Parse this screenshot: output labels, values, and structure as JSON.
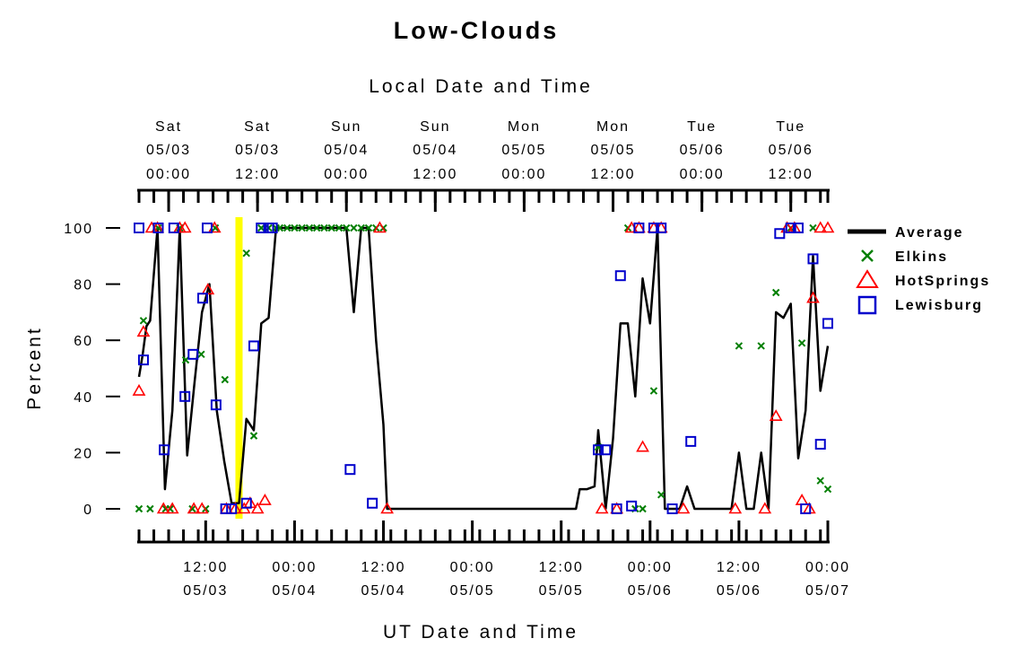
{
  "chart_data": {
    "type": "line",
    "title": "Low-Clouds",
    "top_axis_title": "Local Date and Time",
    "bottom_axis_title": "UT Date and Time",
    "ylabel": "Percent",
    "ylim": [
      0,
      100
    ],
    "y_ticks": [
      0,
      20,
      40,
      60,
      80,
      100
    ],
    "xlim_hours_ut": [
      0,
      93
    ],
    "top_ticks": [
      {
        "t": 4,
        "line1": "Sat",
        "line2": "05/03",
        "line3": "00:00"
      },
      {
        "t": 16,
        "line1": "Sat",
        "line2": "05/03",
        "line3": "12:00"
      },
      {
        "t": 28,
        "line1": "Sun",
        "line2": "05/04",
        "line3": "00:00"
      },
      {
        "t": 40,
        "line1": "Sun",
        "line2": "05/04",
        "line3": "12:00"
      },
      {
        "t": 52,
        "line1": "Mon",
        "line2": "05/05",
        "line3": "00:00"
      },
      {
        "t": 64,
        "line1": "Mon",
        "line2": "05/05",
        "line3": "12:00"
      },
      {
        "t": 76,
        "line1": "Tue",
        "line2": "05/06",
        "line3": "00:00"
      },
      {
        "t": 88,
        "line1": "Tue",
        "line2": "05/06",
        "line3": "12:00"
      }
    ],
    "bottom_ticks": [
      {
        "t": 9,
        "time": "12:00",
        "date": "05/03"
      },
      {
        "t": 21,
        "time": "00:00",
        "date": "05/04"
      },
      {
        "t": 33,
        "time": "12:00",
        "date": "05/04"
      },
      {
        "t": 45,
        "time": "00:00",
        "date": "05/05"
      },
      {
        "t": 57,
        "time": "12:00",
        "date": "05/05"
      },
      {
        "t": 69,
        "time": "00:00",
        "date": "05/06"
      },
      {
        "t": 81,
        "time": "12:00",
        "date": "05/06"
      },
      {
        "t": 93,
        "time": "00:00",
        "date": "05/07"
      }
    ],
    "highlight_hour": 13.5,
    "highlight_color": "#ffff00",
    "legend_position": "right",
    "series": [
      {
        "name": "Average",
        "marker": "line",
        "color": "#000000",
        "points": [
          [
            0,
            47
          ],
          [
            0.5,
            55
          ],
          [
            1,
            65
          ],
          [
            1.5,
            67
          ],
          [
            2.5,
            100
          ],
          [
            3.5,
            7
          ],
          [
            4.5,
            35
          ],
          [
            5.5,
            100
          ],
          [
            6.5,
            19
          ],
          [
            7.5,
            45
          ],
          [
            8.5,
            70
          ],
          [
            9.5,
            80
          ],
          [
            10.5,
            35
          ],
          [
            11.5,
            17
          ],
          [
            12.5,
            2
          ],
          [
            13.5,
            2
          ],
          [
            14.5,
            32
          ],
          [
            15.5,
            28
          ],
          [
            16.5,
            66
          ],
          [
            17.5,
            68
          ],
          [
            18.5,
            100
          ],
          [
            28,
            100
          ],
          [
            29,
            70
          ],
          [
            30,
            100
          ],
          [
            31,
            100
          ],
          [
            32,
            60
          ],
          [
            33,
            30
          ],
          [
            33.5,
            0
          ],
          [
            59,
            0
          ],
          [
            59.5,
            7
          ],
          [
            60.5,
            7
          ],
          [
            61.5,
            8
          ],
          [
            62,
            28
          ],
          [
            63,
            0
          ],
          [
            64,
            25
          ],
          [
            65,
            66
          ],
          [
            66,
            66
          ],
          [
            67,
            40
          ],
          [
            68,
            82
          ],
          [
            69,
            66
          ],
          [
            70,
            100
          ],
          [
            71,
            0
          ],
          [
            73,
            0
          ],
          [
            74,
            8
          ],
          [
            75,
            0
          ],
          [
            80,
            0
          ],
          [
            81,
            20
          ],
          [
            82,
            0
          ],
          [
            83,
            0
          ],
          [
            84,
            20
          ],
          [
            85,
            0
          ],
          [
            86,
            70
          ],
          [
            87,
            68
          ],
          [
            88,
            73
          ],
          [
            89,
            18
          ],
          [
            90,
            35
          ],
          [
            91,
            90
          ],
          [
            92,
            42
          ],
          [
            93,
            58
          ]
        ]
      },
      {
        "name": "Elkins",
        "marker": "x",
        "color": "#007f00",
        "points": [
          [
            0,
            0
          ],
          [
            0.6,
            67
          ],
          [
            1.5,
            0
          ],
          [
            2.6,
            100
          ],
          [
            3.6,
            0
          ],
          [
            4.2,
            0
          ],
          [
            5.5,
            100
          ],
          [
            6.3,
            53
          ],
          [
            7.2,
            0
          ],
          [
            8.4,
            55
          ],
          [
            9,
            0
          ],
          [
            10.3,
            100
          ],
          [
            11.6,
            46
          ],
          [
            14.5,
            91
          ],
          [
            15.5,
            26
          ],
          [
            16.5,
            100
          ],
          [
            17.5,
            100
          ],
          [
            18.5,
            100
          ],
          [
            19,
            100
          ],
          [
            20,
            100
          ],
          [
            21,
            100
          ],
          [
            22,
            100
          ],
          [
            23,
            100
          ],
          [
            24,
            100
          ],
          [
            25,
            100
          ],
          [
            26,
            100
          ],
          [
            27,
            100
          ],
          [
            28,
            100
          ],
          [
            29,
            100
          ],
          [
            30,
            100
          ],
          [
            31,
            100
          ],
          [
            32,
            100
          ],
          [
            33,
            100
          ],
          [
            62,
            22
          ],
          [
            66,
            100
          ],
          [
            67,
            0
          ],
          [
            68,
            0
          ],
          [
            69.5,
            42
          ],
          [
            70.5,
            5
          ],
          [
            81,
            58
          ],
          [
            84,
            58
          ],
          [
            86,
            77
          ],
          [
            88,
            100
          ],
          [
            89.5,
            59
          ],
          [
            91,
            100
          ],
          [
            92,
            10
          ],
          [
            93,
            7
          ]
        ]
      },
      {
        "name": "HotSprings",
        "marker": "triangle",
        "color": "#ff0000",
        "points": [
          [
            0,
            42
          ],
          [
            0.6,
            63
          ],
          [
            1.7,
            100
          ],
          [
            2.5,
            100
          ],
          [
            3.3,
            0
          ],
          [
            4.5,
            0
          ],
          [
            5.5,
            100
          ],
          [
            6.2,
            100
          ],
          [
            7.4,
            0
          ],
          [
            8.5,
            0
          ],
          [
            9.3,
            78
          ],
          [
            10.2,
            100
          ],
          [
            11.8,
            0
          ],
          [
            13,
            0
          ],
          [
            14.2,
            0
          ],
          [
            15,
            2
          ],
          [
            16,
            0
          ],
          [
            17,
            3
          ],
          [
            32.5,
            100
          ],
          [
            33.5,
            0
          ],
          [
            62.5,
            0
          ],
          [
            64.5,
            0
          ],
          [
            66.5,
            100
          ],
          [
            67.5,
            100
          ],
          [
            68,
            22
          ],
          [
            69.5,
            100
          ],
          [
            70.5,
            100
          ],
          [
            73.5,
            0
          ],
          [
            80.5,
            0
          ],
          [
            84.5,
            0
          ],
          [
            86,
            33
          ],
          [
            87.5,
            100
          ],
          [
            88.5,
            100
          ],
          [
            89.5,
            3
          ],
          [
            90.5,
            0
          ],
          [
            91,
            75
          ],
          [
            92,
            100
          ],
          [
            93,
            100
          ]
        ]
      },
      {
        "name": "Lewisburg",
        "marker": "square",
        "color": "#0000cc",
        "points": [
          [
            0,
            100
          ],
          [
            0.6,
            53
          ],
          [
            2.6,
            100
          ],
          [
            3.4,
            21
          ],
          [
            4.7,
            100
          ],
          [
            6.2,
            40
          ],
          [
            7.3,
            55
          ],
          [
            8.6,
            75
          ],
          [
            9.2,
            100
          ],
          [
            10.4,
            37
          ],
          [
            11.7,
            0
          ],
          [
            12.5,
            0
          ],
          [
            14.5,
            2
          ],
          [
            15.5,
            58
          ],
          [
            16.5,
            100
          ],
          [
            17.5,
            100
          ],
          [
            18,
            100
          ],
          [
            28.5,
            14
          ],
          [
            31.5,
            2
          ],
          [
            62,
            21
          ],
          [
            63,
            21
          ],
          [
            64.5,
            0
          ],
          [
            65,
            83
          ],
          [
            66.5,
            1
          ],
          [
            67.5,
            100
          ],
          [
            69.5,
            100
          ],
          [
            70.5,
            100
          ],
          [
            72,
            0
          ],
          [
            74.5,
            24
          ],
          [
            86.5,
            98
          ],
          [
            88,
            100
          ],
          [
            89,
            100
          ],
          [
            90,
            0
          ],
          [
            91,
            89
          ],
          [
            92,
            23
          ],
          [
            93,
            66
          ]
        ]
      }
    ]
  }
}
